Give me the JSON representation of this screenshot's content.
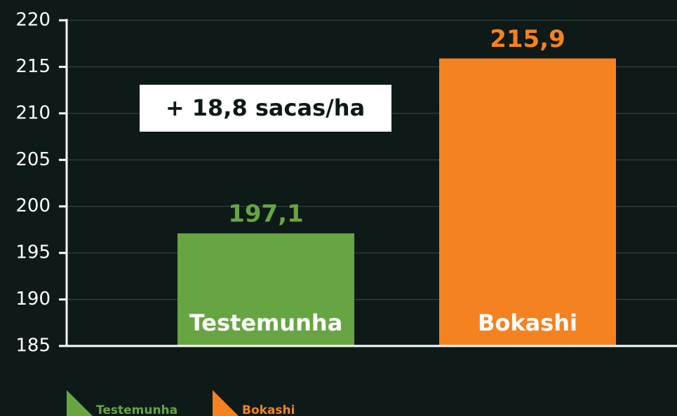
{
  "chart_data": {
    "type": "bar",
    "categories": [
      "Testemunha",
      "Bokashi"
    ],
    "values": [
      197.1,
      215.9
    ],
    "value_labels": [
      "197,1",
      "215,9"
    ],
    "colors": [
      "#67a543",
      "#f58220"
    ],
    "annotation": "+ 18,8 sacas/ha",
    "ylim": [
      185,
      220
    ],
    "yticks": [
      185,
      190,
      195,
      200,
      205,
      210,
      215,
      220
    ],
    "grid": true
  }
}
